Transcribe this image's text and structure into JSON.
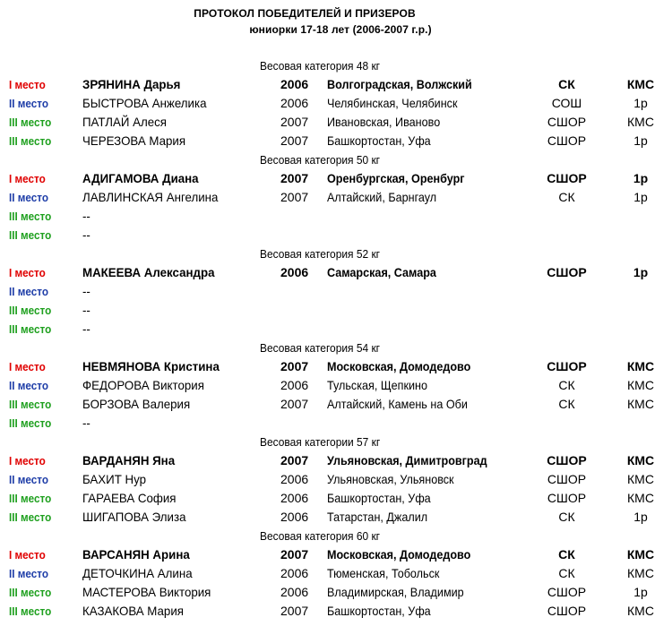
{
  "header": {
    "title": "ПРОТОКОЛ ПОБЕДИТЕЛЕЙ И ПРИЗЕРОВ",
    "subtitle": "юниорки 17-18 лет (2006-2007 г.р.)"
  },
  "colors": {
    "first": "#e00000",
    "second": "#1f3ea8",
    "third": "#1fa01f"
  },
  "categories": [
    {
      "title": "Весовая категория 48 кг",
      "rows": [
        {
          "place": "I место",
          "tier": 1,
          "name": "ЗРЯНИНА Дарья",
          "year": "2006",
          "region": "Волгоградская, Волжский",
          "org": "СК",
          "rank": "КМС"
        },
        {
          "place": "II место",
          "tier": 2,
          "name": "БЫСТРОВА Анжелика",
          "year": "2006",
          "region": "Челябинская, Челябинск",
          "org": "СОШ",
          "rank": "1р"
        },
        {
          "place": "III место",
          "tier": 3,
          "name": "ПАТЛАЙ Алеся",
          "year": "2007",
          "region": "Ивановская, Иваново",
          "org": "СШОР",
          "rank": "КМС"
        },
        {
          "place": "III место",
          "tier": 3,
          "name": "ЧЕРЕЗОВА Мария",
          "year": "2007",
          "region": "Башкортостан, Уфа",
          "org": "СШОР",
          "rank": "1р"
        }
      ]
    },
    {
      "title": "Весовая категория 50 кг",
      "rows": [
        {
          "place": "I место",
          "tier": 1,
          "name": "АДИГАМОВА Диана",
          "year": "2007",
          "region": "Оренбургская, Оренбург",
          "org": "СШОР",
          "rank": "1р"
        },
        {
          "place": "II место",
          "tier": 2,
          "name": "ЛАВЛИНСКАЯ Ангелина",
          "year": "2007",
          "region": "Алтайский, Барнгаул",
          "org": "СК",
          "rank": "1р"
        },
        {
          "place": "III место",
          "tier": 3,
          "name": "--",
          "year": "",
          "region": "",
          "org": "",
          "rank": ""
        },
        {
          "place": "III место",
          "tier": 3,
          "name": "--",
          "year": "",
          "region": "",
          "org": "",
          "rank": ""
        }
      ]
    },
    {
      "title": "Весовая категория 52 кг",
      "rows": [
        {
          "place": "I место",
          "tier": 1,
          "name": "МАКЕЕВА Александра",
          "year": "2006",
          "region": "Самарская, Самара",
          "org": "СШОР",
          "rank": "1р"
        },
        {
          "place": "II место",
          "tier": 2,
          "name": "--",
          "year": "",
          "region": "",
          "org": "",
          "rank": ""
        },
        {
          "place": "III место",
          "tier": 3,
          "name": "--",
          "year": "",
          "region": "",
          "org": "",
          "rank": ""
        },
        {
          "place": "III место",
          "tier": 3,
          "name": "--",
          "year": "",
          "region": "",
          "org": "",
          "rank": ""
        }
      ]
    },
    {
      "title": "Весовая категория 54 кг",
      "rows": [
        {
          "place": "I место",
          "tier": 1,
          "name": "НЕВМЯНОВА Кристина",
          "year": "2007",
          "region": "Московская, Домодедово",
          "org": "СШОР",
          "rank": "КМС"
        },
        {
          "place": "II место",
          "tier": 2,
          "name": "ФЕДОРОВА Виктория",
          "year": "2006",
          "region": "Тульская, Щепкино",
          "org": "СК",
          "rank": "КМС"
        },
        {
          "place": "III место",
          "tier": 3,
          "name": "БОРЗОВА Валерия",
          "year": "2007",
          "region": "Алтайский, Камень на Оби",
          "org": "СК",
          "rank": "КМС"
        },
        {
          "place": "III место",
          "tier": 3,
          "name": "--",
          "year": "",
          "region": "",
          "org": "",
          "rank": ""
        }
      ]
    },
    {
      "title": "Весовая категории 57 кг",
      "rows": [
        {
          "place": "I место",
          "tier": 1,
          "name": "ВАРДАНЯН Яна",
          "year": "2007",
          "region": "Ульяновская, Димитровград",
          "org": "СШОР",
          "rank": "КМС"
        },
        {
          "place": "II место",
          "tier": 2,
          "name": "БАХИТ Нур",
          "year": "2006",
          "region": "Ульяновская, Ульяновск",
          "org": "СШОР",
          "rank": "КМС"
        },
        {
          "place": "III место",
          "tier": 3,
          "name": "ГАРАЕВА София",
          "year": "2006",
          "region": "Башкортостан, Уфа",
          "org": "СШОР",
          "rank": "КМС"
        },
        {
          "place": "III место",
          "tier": 3,
          "name": "ШИГАПОВА Элиза",
          "year": "2006",
          "region": "Татарстан, Джалил",
          "org": "СК",
          "rank": "1р"
        }
      ]
    },
    {
      "title": "Весовая категория 60 кг",
      "rows": [
        {
          "place": "I место",
          "tier": 1,
          "name": "ВАРСАНЯН Арина",
          "year": "2007",
          "region": "Московская, Домодедово",
          "org": "СК",
          "rank": "КМС"
        },
        {
          "place": "II место",
          "tier": 2,
          "name": "ДЕТОЧКИНА Алина",
          "year": "2006",
          "region": "Тюменская, Тобольск",
          "org": "СК",
          "rank": "КМС"
        },
        {
          "place": "III место",
          "tier": 3,
          "name": "МАСТЕРОВА Виктория",
          "year": "2006",
          "region": "Владимирская, Владимир",
          "org": "СШОР",
          "rank": "1р"
        },
        {
          "place": "III место",
          "tier": 3,
          "name": "КАЗАКОВА Мария",
          "year": "2007",
          "region": "Башкортостан, Уфа",
          "org": "СШОР",
          "rank": "КМС"
        }
      ]
    }
  ]
}
